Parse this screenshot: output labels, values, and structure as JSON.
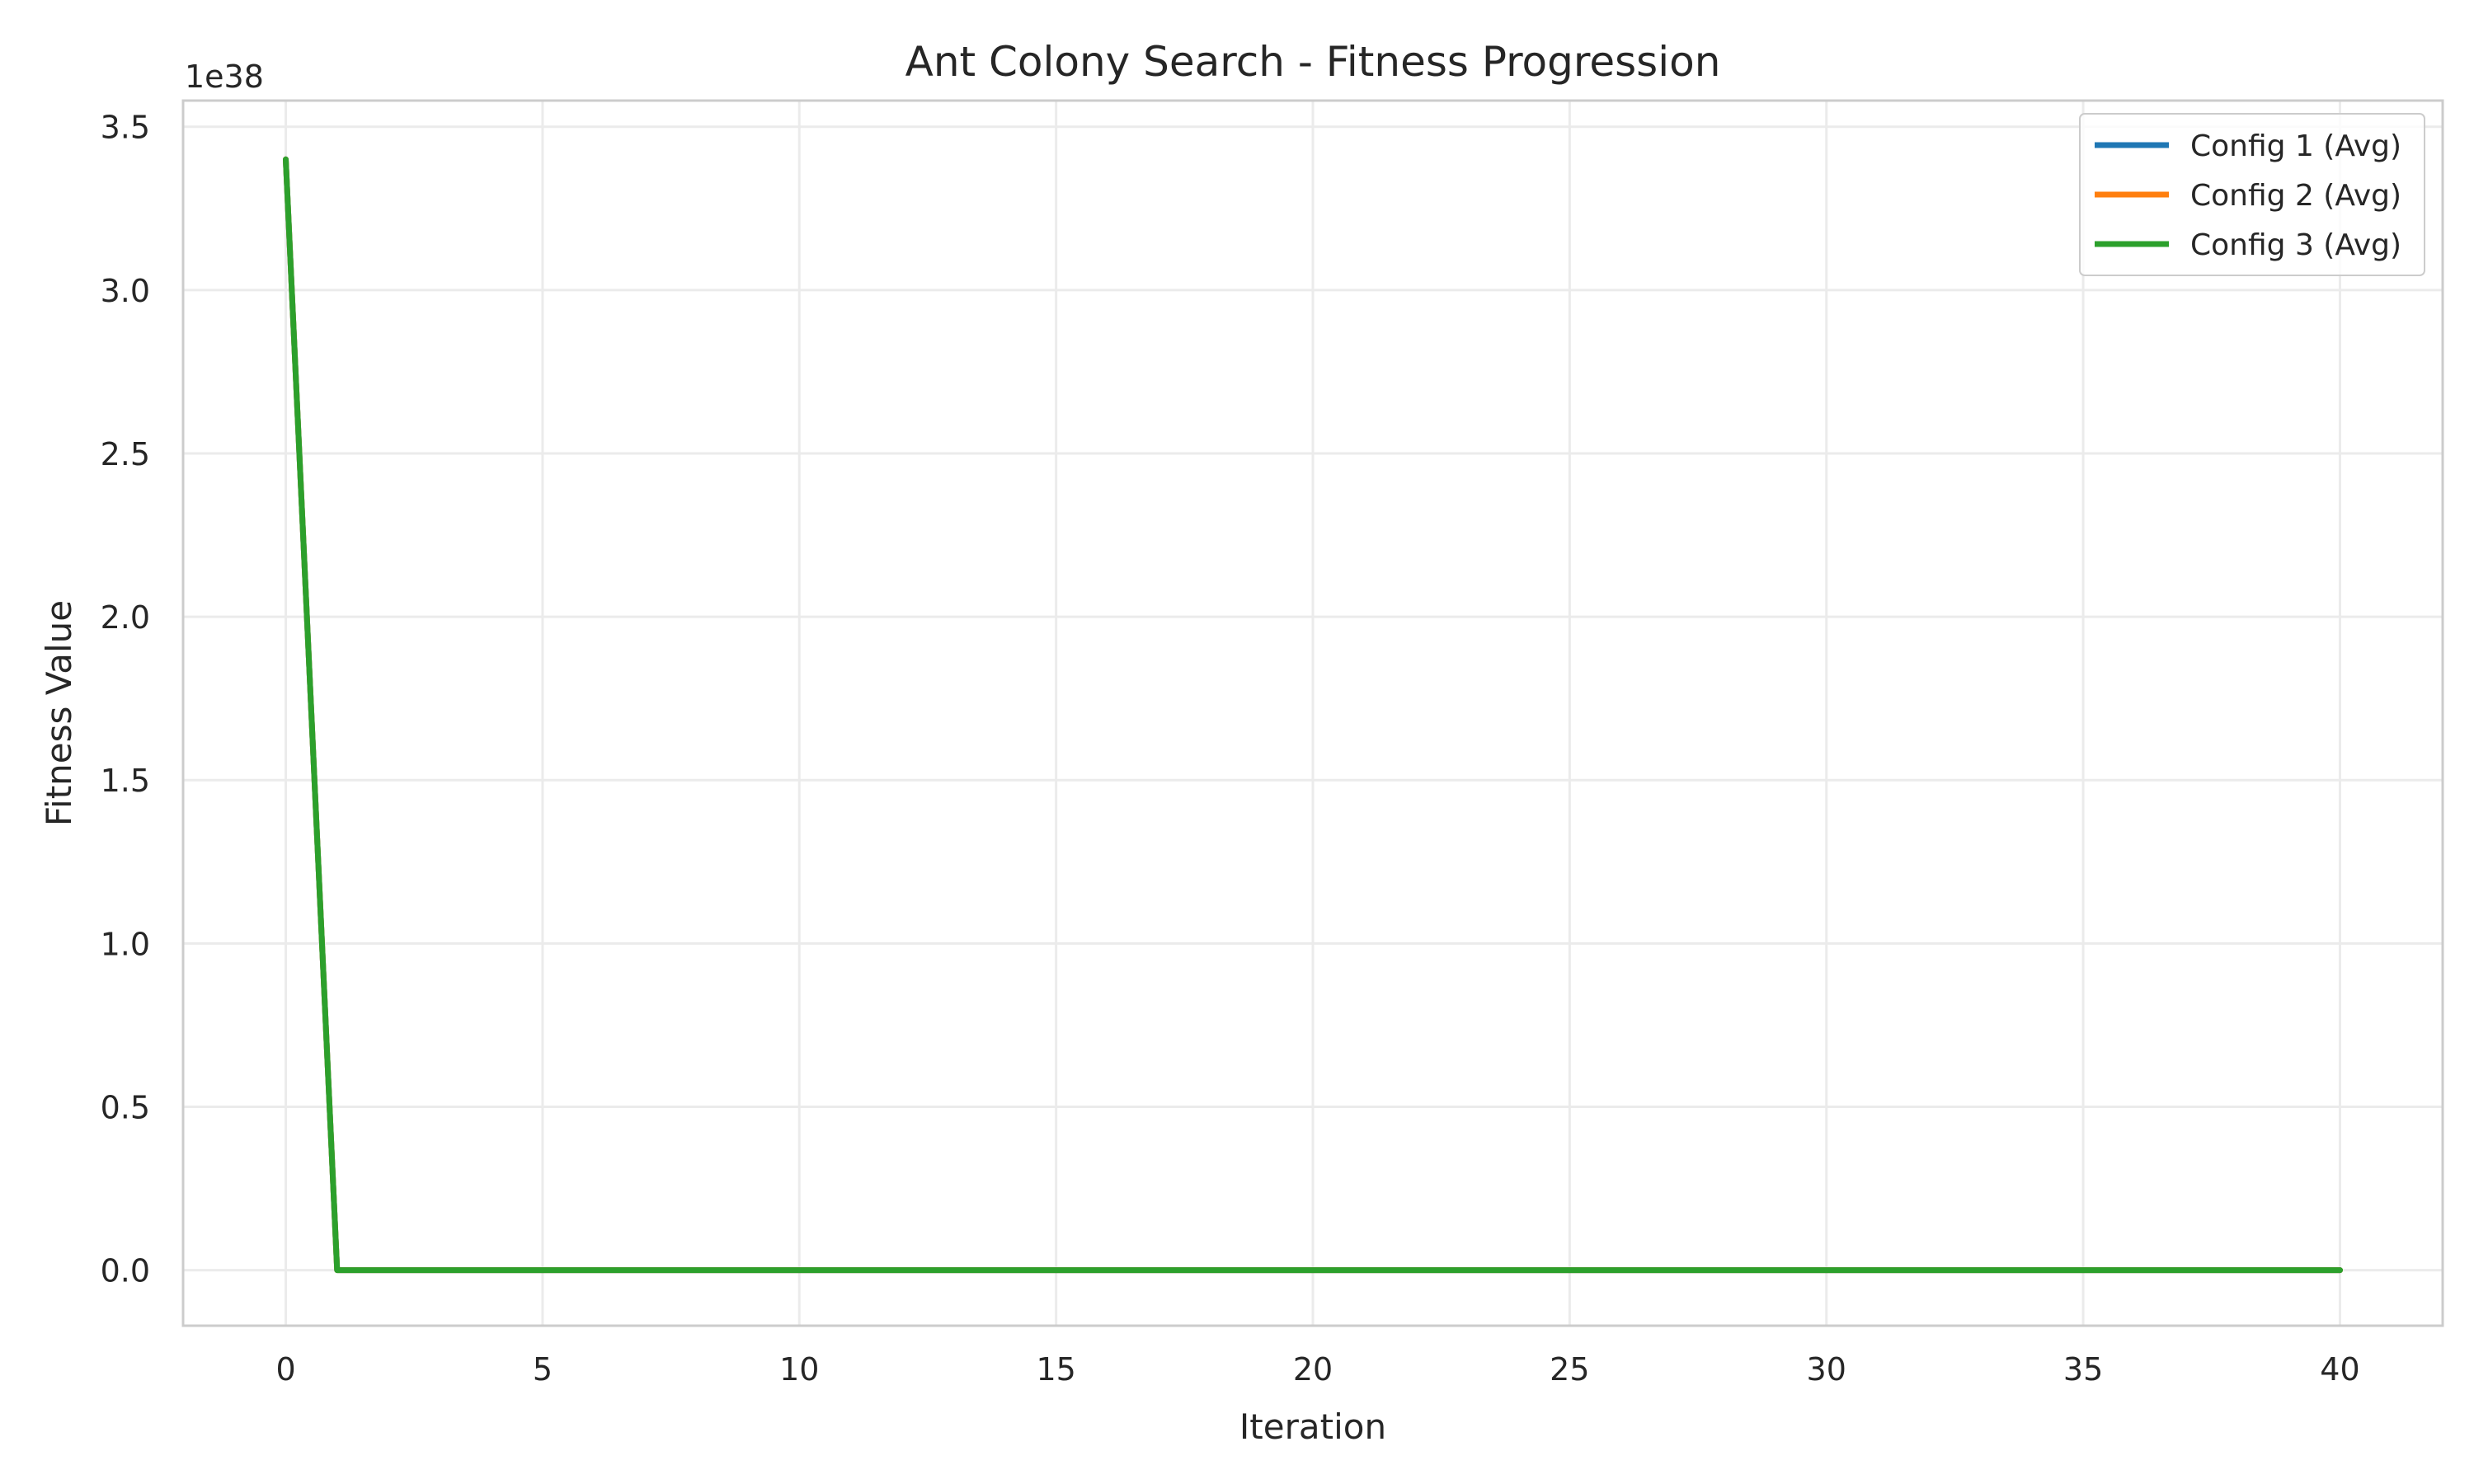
{
  "chart_data": {
    "type": "line",
    "title": "Ant Colony Search - Fitness Progression",
    "xlabel": "Iteration",
    "ylabel": "Fitness Value",
    "y_offset_text": "1e38",
    "y_multiplier": 1e+38,
    "xlim": [
      -2,
      42
    ],
    "ylim": [
      -0.17,
      3.58
    ],
    "xticks": [
      0,
      5,
      10,
      15,
      20,
      25,
      30,
      35,
      40
    ],
    "yticks": [
      0.0,
      0.5,
      1.0,
      1.5,
      2.0,
      2.5,
      3.0,
      3.5
    ],
    "grid": true,
    "legend_position": "top-right",
    "series": [
      {
        "name": "Config 1 (Avg)",
        "color": "#1f77b4",
        "x": [
          0,
          1,
          40
        ],
        "y": [
          3.4,
          0.0,
          0.0
        ]
      },
      {
        "name": "Config 2 (Avg)",
        "color": "#ff7f0e",
        "x": [
          0,
          1,
          40
        ],
        "y": [
          3.4,
          0.0,
          0.0
        ]
      },
      {
        "name": "Config 3 (Avg)",
        "color": "#2ca02c",
        "x": [
          0,
          1,
          40
        ],
        "y": [
          3.4,
          0.0,
          0.0
        ]
      }
    ]
  }
}
